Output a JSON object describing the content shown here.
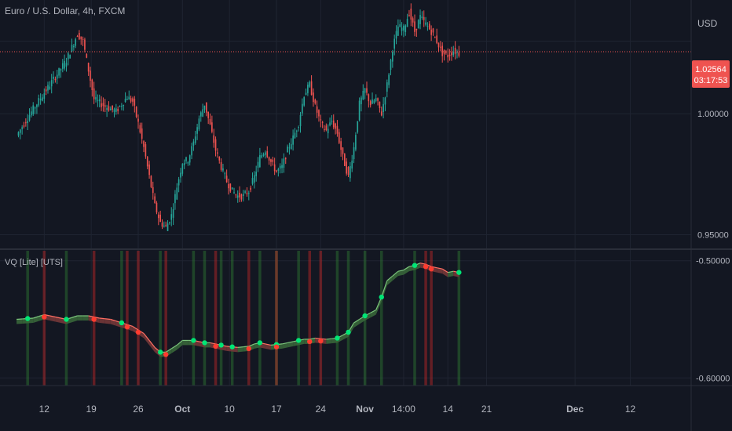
{
  "header": {
    "symbol_title": "Euro / U.S. Dollar, 4h, FXCM",
    "currency": "USD"
  },
  "indicator": {
    "label": "VQ [Lite] [UTS]"
  },
  "price_badge": {
    "price": "1.02564",
    "countdown": "03:17:53",
    "color": "#ef5350"
  },
  "colors": {
    "background": "#131722",
    "grid": "#1f2431",
    "text": "#b2b5be",
    "up": "#26a69a",
    "down": "#ef5350",
    "vq_up_fill": "#3b6b3b",
    "vq_down_fill": "#7a3a3a",
    "signal_bull": "#00e676",
    "signal_bear": "#ff3b2f",
    "bar_green": "#2e7d32",
    "bar_red": "#c62828"
  },
  "chart_data": [
    {
      "type": "candlestick",
      "title": "Euro / U.S. Dollar, 4h, FXCM",
      "x_ticks": [
        "12",
        "19",
        "26",
        "Oct",
        "10",
        "17",
        "24",
        "Nov",
        "14:00",
        "14",
        "21",
        "Dec",
        "12"
      ],
      "y_ticks": [
        "1.00000",
        "0.95000"
      ],
      "ylim": [
        0.944,
        1.047
      ],
      "last_price": 1.02564,
      "close_path": [
        [
          0,
          0.991
        ],
        [
          3,
          1.002
        ],
        [
          6,
          1.012
        ],
        [
          9,
          1.022
        ],
        [
          11,
          1.033
        ],
        [
          12,
          1.03
        ],
        [
          13,
          1.018
        ],
        [
          14,
          1.006
        ],
        [
          16,
          1.003
        ],
        [
          18,
          1.001
        ],
        [
          19,
          1.004
        ],
        [
          20,
          1.007
        ],
        [
          21,
          1.005
        ],
        [
          22,
          0.996
        ],
        [
          23,
          0.986
        ],
        [
          24,
          0.974
        ],
        [
          25,
          0.962
        ],
        [
          26,
          0.955
        ],
        [
          27,
          0.953
        ],
        [
          28,
          0.958
        ],
        [
          29,
          0.97
        ],
        [
          30,
          0.98
        ],
        [
          31,
          0.981
        ],
        [
          32,
          0.988
        ],
        [
          33,
          0.998
        ],
        [
          34,
          1.004
        ],
        [
          35,
          0.995
        ],
        [
          36,
          0.985
        ],
        [
          37,
          0.978
        ],
        [
          38,
          0.972
        ],
        [
          39,
          0.968
        ],
        [
          40,
          0.966
        ],
        [
          41,
          0.966
        ],
        [
          42,
          0.968
        ],
        [
          43,
          0.974
        ],
        [
          44,
          0.982
        ],
        [
          45,
          0.985
        ],
        [
          46,
          0.98
        ],
        [
          47,
          0.976
        ],
        [
          48,
          0.978
        ],
        [
          49,
          0.985
        ],
        [
          50,
          0.99
        ],
        [
          51,
          0.996
        ],
        [
          52,
          1.008
        ],
        [
          53,
          1.012
        ],
        [
          54,
          1.003
        ],
        [
          55,
          0.996
        ],
        [
          56,
          0.993
        ],
        [
          57,
          0.997
        ],
        [
          58,
          0.992
        ],
        [
          59,
          0.982
        ],
        [
          60,
          0.974
        ],
        [
          61,
          0.986
        ],
        [
          62,
          1.004
        ],
        [
          63,
          1.01
        ],
        [
          64,
          1.004
        ],
        [
          65,
          1.006
        ],
        [
          66,
          1.0
        ],
        [
          67,
          1.012
        ],
        [
          68,
          1.027
        ],
        [
          69,
          1.036
        ],
        [
          70,
          1.035
        ],
        [
          71,
          1.042
        ],
        [
          72,
          1.034
        ],
        [
          73,
          1.04
        ],
        [
          74,
          1.037
        ],
        [
          75,
          1.034
        ],
        [
          76,
          1.03
        ],
        [
          77,
          1.025
        ],
        [
          78,
          1.024
        ],
        [
          79,
          1.026
        ],
        [
          80,
          1.025
        ]
      ],
      "x_domain": [
        -3,
        122
      ]
    },
    {
      "type": "area",
      "title": "VQ [Lite] [UTS]",
      "y_ticks": [
        "-0.50000",
        "-0.60000"
      ],
      "ylim": [
        -0.6065,
        -0.4915
      ],
      "series": [
        {
          "values": [
            [
              0,
              -0.55
            ],
            [
              3,
              -0.549
            ],
            [
              5,
              -0.546
            ],
            [
              7,
              -0.548
            ],
            [
              9,
              -0.55
            ],
            [
              11,
              -0.547
            ],
            [
              13,
              -0.547
            ],
            [
              15,
              -0.549
            ],
            [
              17,
              -0.55
            ],
            [
              19,
              -0.553
            ],
            [
              21,
              -0.556
            ],
            [
              23,
              -0.562
            ],
            [
              25,
              -0.574
            ],
            [
              26,
              -0.578
            ],
            [
              27,
              -0.578
            ],
            [
              29,
              -0.572
            ],
            [
              30,
              -0.568
            ],
            [
              32,
              -0.568
            ],
            [
              34,
              -0.57
            ],
            [
              35,
              -0.57
            ],
            [
              37,
              -0.572
            ],
            [
              38,
              -0.573
            ],
            [
              40,
              -0.574
            ],
            [
              42,
              -0.573
            ],
            [
              43,
              -0.571
            ],
            [
              44,
              -0.57
            ],
            [
              46,
              -0.572
            ],
            [
              48,
              -0.571
            ],
            [
              50,
              -0.569
            ],
            [
              52,
              -0.567
            ],
            [
              53,
              -0.567
            ],
            [
              54,
              -0.566
            ],
            [
              56,
              -0.567
            ],
            [
              58,
              -0.566
            ],
            [
              60,
              -0.561
            ],
            [
              61,
              -0.553
            ],
            [
              63,
              -0.547
            ],
            [
              65,
              -0.542
            ],
            [
              66,
              -0.531
            ],
            [
              67,
              -0.517
            ],
            [
              69,
              -0.509
            ],
            [
              70,
              -0.508
            ],
            [
              71,
              -0.505
            ],
            [
              72,
              -0.504
            ],
            [
              73,
              -0.502
            ],
            [
              74,
              -0.503
            ],
            [
              75,
              -0.505
            ],
            [
              76,
              -0.506
            ],
            [
              77,
              -0.507
            ],
            [
              78,
              -0.51
            ],
            [
              79,
              -0.509
            ],
            [
              80,
              -0.51
            ]
          ]
        }
      ],
      "signals_bull": [
        2,
        9,
        19,
        26,
        32,
        34,
        37,
        39,
        44,
        47,
        51,
        58,
        60,
        63,
        66,
        72,
        80
      ],
      "signals_bear": [
        5,
        14,
        20,
        22,
        27,
        36,
        42,
        47,
        53,
        55,
        74,
        75
      ]
    }
  ]
}
